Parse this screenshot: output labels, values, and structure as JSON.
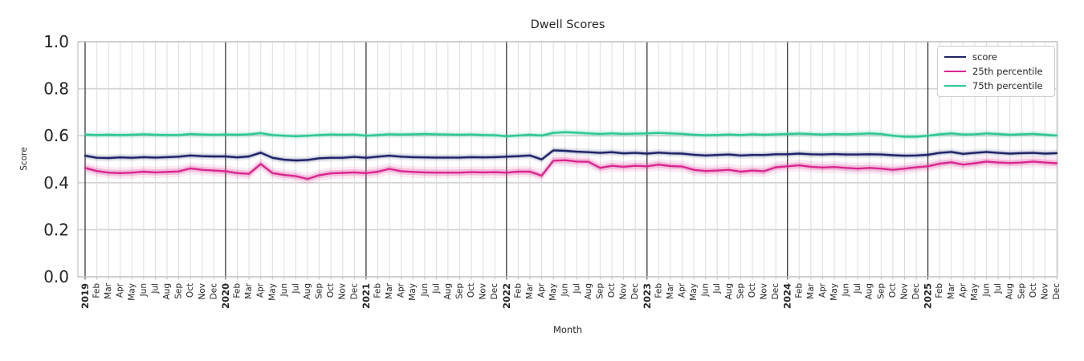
{
  "chart_data": {
    "type": "line",
    "title": "Dwell Scores",
    "xlabel": "Month",
    "ylabel": "Score",
    "ylim": [
      0.0,
      1.0
    ],
    "yticks": [
      0.0,
      0.2,
      0.4,
      0.6,
      0.8,
      1.0
    ],
    "grid": true,
    "legend_position": "upper right",
    "x_labels": [
      "2019",
      "Feb",
      "Mar",
      "Apr",
      "May",
      "Jun",
      "Jul",
      "Aug",
      "Sep",
      "Oct",
      "Nov",
      "Dec",
      "2020",
      "Feb",
      "Mar",
      "Apr",
      "May",
      "Jun",
      "Jul",
      "Aug",
      "Sep",
      "Oct",
      "Nov",
      "Dec",
      "2021",
      "Feb",
      "Mar",
      "Apr",
      "May",
      "Jun",
      "Jul",
      "Aug",
      "Sep",
      "Oct",
      "Nov",
      "Dec",
      "2022",
      "Feb",
      "Mar",
      "Apr",
      "May",
      "Jun",
      "Jul",
      "Aug",
      "Sep",
      "Oct",
      "Nov",
      "Dec",
      "2023",
      "Feb",
      "Mar",
      "Apr",
      "May",
      "Jun",
      "Jul",
      "Aug",
      "Sep",
      "Oct",
      "Nov",
      "Dec",
      "2024",
      "Feb",
      "Mar",
      "Apr",
      "May",
      "Jun",
      "Jul",
      "Aug",
      "Sep",
      "Oct",
      "Nov",
      "Dec",
      "2025",
      "Feb",
      "Mar",
      "Apr",
      "May",
      "Jun",
      "Jul",
      "Aug",
      "Sep",
      "Oct",
      "Nov",
      "Dec"
    ],
    "series": [
      {
        "name": "score",
        "color": "#1f2468",
        "band_color": "rgba(37,41,105,0.20)",
        "band": 0.008,
        "values": [
          0.515,
          0.506,
          0.505,
          0.508,
          0.506,
          0.509,
          0.507,
          0.509,
          0.511,
          0.516,
          0.513,
          0.512,
          0.512,
          0.508,
          0.512,
          0.528,
          0.506,
          0.498,
          0.495,
          0.497,
          0.504,
          0.506,
          0.506,
          0.51,
          0.506,
          0.511,
          0.515,
          0.511,
          0.509,
          0.508,
          0.507,
          0.507,
          0.507,
          0.509,
          0.508,
          0.509,
          0.511,
          0.513,
          0.516,
          0.499,
          0.538,
          0.536,
          0.532,
          0.53,
          0.527,
          0.53,
          0.525,
          0.527,
          0.524,
          0.528,
          0.525,
          0.524,
          0.519,
          0.516,
          0.518,
          0.52,
          0.516,
          0.518,
          0.518,
          0.521,
          0.521,
          0.524,
          0.521,
          0.52,
          0.522,
          0.52,
          0.52,
          0.521,
          0.52,
          0.517,
          0.515,
          0.516,
          0.519,
          0.527,
          0.531,
          0.523,
          0.527,
          0.531,
          0.527,
          0.524,
          0.526,
          0.527,
          0.524,
          0.526
        ]
      },
      {
        "name": "25th percentile",
        "color": "#d9268f",
        "band_color": "rgba(217,38,143,0.22)",
        "band": 0.013,
        "values": [
          0.463,
          0.45,
          0.443,
          0.441,
          0.443,
          0.447,
          0.444,
          0.446,
          0.448,
          0.461,
          0.455,
          0.452,
          0.449,
          0.441,
          0.438,
          0.48,
          0.441,
          0.433,
          0.428,
          0.416,
          0.432,
          0.44,
          0.442,
          0.444,
          0.441,
          0.447,
          0.459,
          0.449,
          0.446,
          0.444,
          0.443,
          0.443,
          0.443,
          0.445,
          0.444,
          0.445,
          0.443,
          0.447,
          0.447,
          0.43,
          0.494,
          0.496,
          0.49,
          0.489,
          0.463,
          0.472,
          0.468,
          0.472,
          0.47,
          0.477,
          0.471,
          0.469,
          0.455,
          0.45,
          0.452,
          0.455,
          0.447,
          0.452,
          0.449,
          0.466,
          0.47,
          0.474,
          0.468,
          0.465,
          0.467,
          0.463,
          0.46,
          0.463,
          0.46,
          0.455,
          0.46,
          0.466,
          0.47,
          0.481,
          0.487,
          0.477,
          0.483,
          0.49,
          0.486,
          0.484,
          0.486,
          0.49,
          0.486,
          0.483
        ]
      },
      {
        "name": "75th percentile",
        "color": "#2ec796",
        "band_color": "rgba(46,199,150,0.22)",
        "band": 0.008,
        "values": [
          0.605,
          0.603,
          0.604,
          0.603,
          0.604,
          0.606,
          0.604,
          0.603,
          0.603,
          0.607,
          0.605,
          0.604,
          0.605,
          0.604,
          0.606,
          0.611,
          0.603,
          0.6,
          0.598,
          0.6,
          0.603,
          0.605,
          0.604,
          0.605,
          0.6,
          0.603,
          0.606,
          0.605,
          0.606,
          0.607,
          0.606,
          0.605,
          0.604,
          0.605,
          0.603,
          0.602,
          0.598,
          0.601,
          0.604,
          0.601,
          0.612,
          0.615,
          0.613,
          0.61,
          0.608,
          0.61,
          0.608,
          0.609,
          0.61,
          0.612,
          0.61,
          0.608,
          0.604,
          0.602,
          0.603,
          0.605,
          0.603,
          0.606,
          0.604,
          0.606,
          0.607,
          0.609,
          0.607,
          0.605,
          0.607,
          0.606,
          0.608,
          0.61,
          0.607,
          0.6,
          0.596,
          0.596,
          0.6,
          0.606,
          0.61,
          0.605,
          0.606,
          0.61,
          0.607,
          0.604,
          0.606,
          0.608,
          0.604,
          0.601
        ]
      }
    ]
  }
}
